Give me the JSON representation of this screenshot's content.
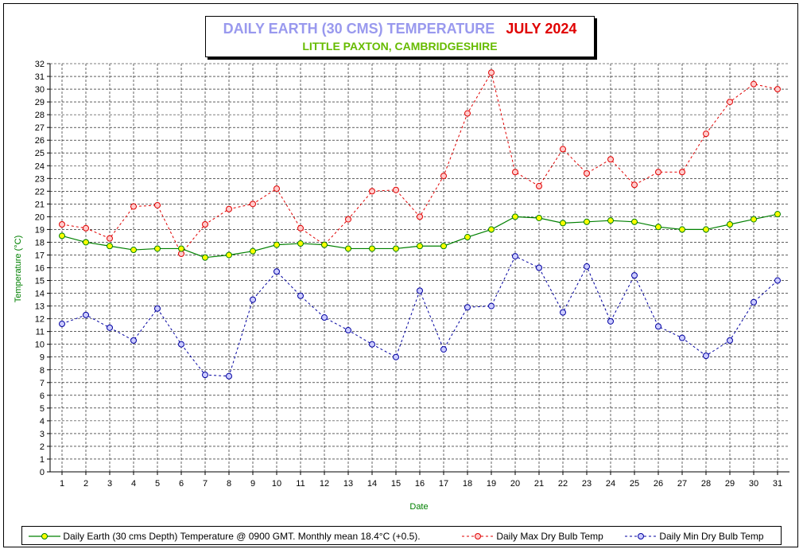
{
  "chart_data": {
    "type": "line",
    "title": "DAILY EARTH (30 CMS) TEMPERATURE",
    "title_month": "JULY 2024",
    "subtitle": "LITTLE PAXTON, CAMBRIDGESHIRE",
    "xlabel": "Date",
    "ylabel": "Temperature (°C)",
    "ylim": [
      0,
      32
    ],
    "grid": true,
    "legend_position": "bottom",
    "x": [
      1,
      2,
      3,
      4,
      5,
      6,
      7,
      8,
      9,
      10,
      11,
      12,
      13,
      14,
      15,
      16,
      17,
      18,
      19,
      20,
      21,
      22,
      23,
      24,
      25,
      26,
      27,
      28,
      29,
      30,
      31
    ],
    "series": [
      {
        "name": "Daily Earth (30 cms Depth) Temperature @ 0900 GMT. Monthly mean 18.4°C (+0.5).",
        "color": "#008000",
        "marker_fill": "#ffff00",
        "style": "solid",
        "values": [
          18.5,
          18.0,
          17.7,
          17.4,
          17.5,
          17.5,
          16.8,
          17.0,
          17.3,
          17.8,
          17.9,
          17.8,
          17.5,
          17.5,
          17.5,
          17.7,
          17.7,
          18.4,
          19.0,
          20.0,
          19.9,
          19.5,
          19.6,
          19.7,
          19.6,
          19.2,
          19.0,
          19.0,
          19.4,
          19.8,
          20.2
        ]
      },
      {
        "name": "Daily Max Dry Bulb Temp",
        "color": "#e00000",
        "marker_fill": "#ffcccc",
        "style": "dashed",
        "values": [
          19.4,
          19.1,
          18.3,
          20.8,
          20.9,
          17.1,
          19.4,
          20.6,
          21.0,
          22.2,
          19.1,
          17.8,
          19.8,
          22.0,
          22.1,
          20.0,
          23.2,
          28.1,
          31.3,
          23.5,
          22.4,
          25.3,
          23.4,
          24.5,
          22.5,
          23.5,
          23.5,
          26.5,
          29.0,
          30.4,
          30.0
        ]
      },
      {
        "name": "Daily Min Dry Bulb Temp",
        "color": "#0000a0",
        "marker_fill": "#ccccff",
        "style": "dashed",
        "values": [
          11.6,
          12.3,
          11.3,
          10.3,
          12.8,
          10.0,
          7.6,
          7.5,
          13.5,
          15.7,
          13.8,
          12.1,
          11.1,
          10.0,
          9.0,
          14.2,
          9.6,
          12.9,
          13.0,
          16.9,
          16.0,
          12.5,
          16.1,
          11.8,
          15.4,
          11.4,
          10.5,
          9.1,
          10.3,
          13.3,
          15.0
        ]
      }
    ]
  }
}
